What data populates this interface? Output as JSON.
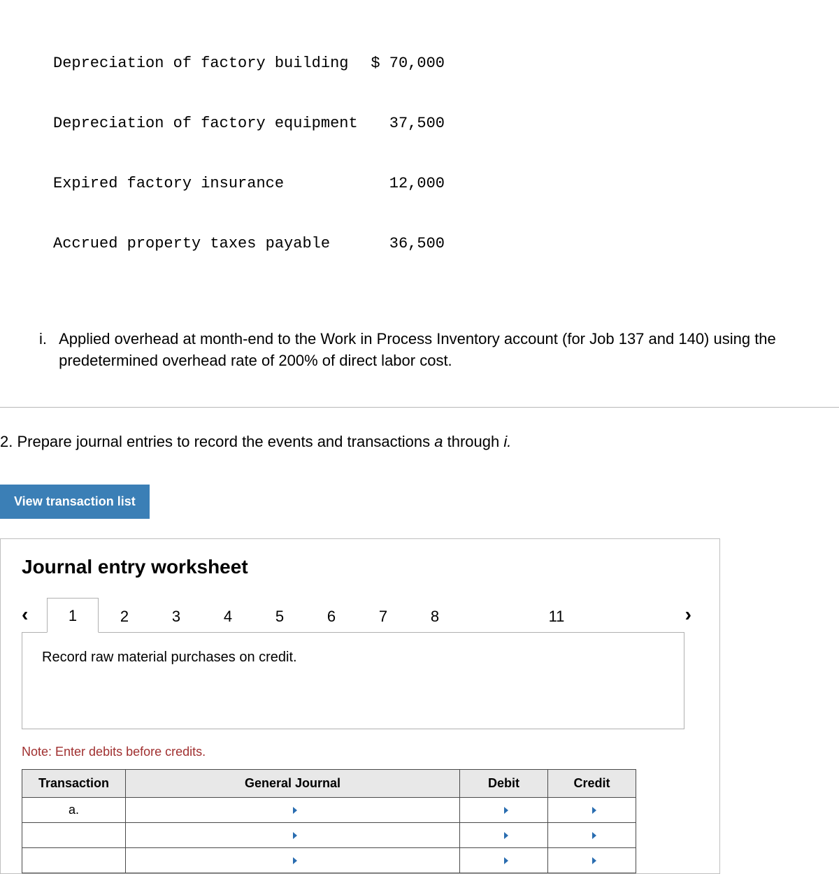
{
  "overhead_items": [
    {
      "label": "Depreciation of factory building",
      "value": "$ 70,000"
    },
    {
      "label": "Depreciation of factory equipment",
      "value": "37,500"
    },
    {
      "label": "Expired factory insurance",
      "value": "12,000"
    },
    {
      "label": "Accrued property taxes payable",
      "value": "36,500"
    }
  ],
  "item_i": {
    "marker": "i.",
    "text": "Applied overhead at month-end to the Work in Process Inventory account (for Job 137 and 140) using the predetermined overhead rate of 200% of direct labor cost."
  },
  "question2": {
    "prefix": "2. Prepare journal entries to record the events and transactions ",
    "italic1": "a",
    "mid": " through ",
    "italic2": "i."
  },
  "view_btn": "View transaction list",
  "worksheet": {
    "title": "Journal entry worksheet",
    "prompt": "Record raw material purchases on credit.",
    "note": "Note: Enter debits before credits.",
    "tabs": [
      "1",
      "2",
      "3",
      "4",
      "5",
      "6",
      "7",
      "8",
      "11"
    ],
    "active_tab": "1",
    "headers": {
      "transaction": "Transaction",
      "gj": "General Journal",
      "debit": "Debit",
      "credit": "Credit"
    },
    "rows": [
      {
        "transaction": "a.",
        "gj": "",
        "debit": "",
        "credit": ""
      },
      {
        "transaction": "",
        "gj": "",
        "debit": "",
        "credit": ""
      },
      {
        "transaction": "",
        "gj": "",
        "debit": "",
        "credit": ""
      }
    ]
  },
  "colors": {
    "button_bg": "#3b7fb6",
    "note_color": "#a03030",
    "tri_color": "#2a6db0"
  }
}
